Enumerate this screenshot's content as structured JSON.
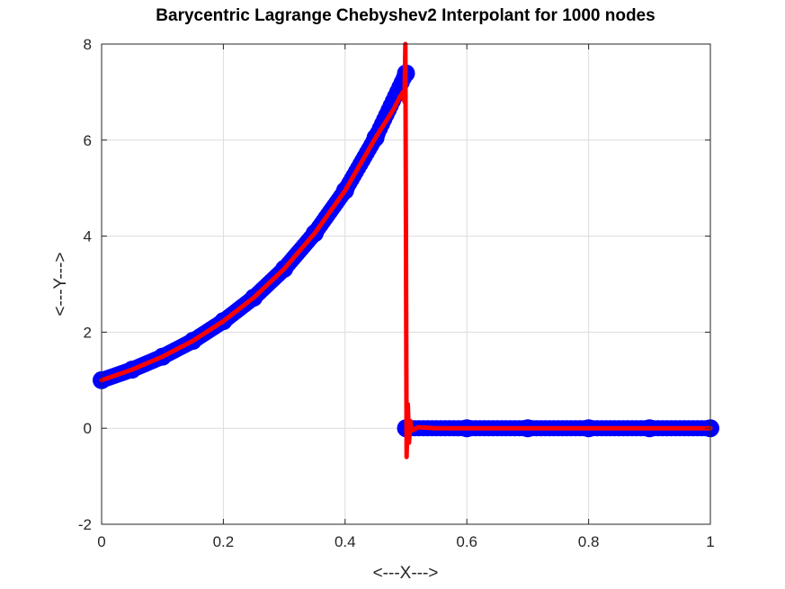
{
  "chart_data": {
    "type": "line",
    "title": "Barycentric Lagrange Chebyshev2 Interpolant for 1000 nodes",
    "xlabel": "<---X--->",
    "ylabel": "<---Y--->",
    "xlim": [
      0,
      1
    ],
    "ylim": [
      -2,
      8
    ],
    "xticks": [
      0,
      0.2,
      0.4,
      0.6,
      0.8,
      1
    ],
    "xtick_labels": [
      "0",
      "0.2",
      "0.4",
      "0.6",
      "0.8",
      "1"
    ],
    "yticks": [
      -2,
      0,
      2,
      4,
      6,
      8
    ],
    "ytick_labels": [
      "-2",
      "0",
      "2",
      "4",
      "6",
      "8"
    ],
    "grid": true,
    "series": [
      {
        "style": "markers",
        "color": "#0000ff",
        "x": [
          0,
          0.05,
          0.1,
          0.15,
          0.2,
          0.25,
          0.3,
          0.35,
          0.4,
          0.45,
          0.5,
          0.5,
          0.6,
          0.7,
          0.8,
          0.9,
          1.0
        ],
        "y": [
          1.0,
          1.22,
          1.49,
          1.82,
          2.23,
          2.72,
          3.32,
          4.06,
          4.95,
          6.05,
          7.39,
          0,
          0,
          0,
          0,
          0,
          0
        ]
      },
      {
        "style": "line",
        "color": "#ff0000",
        "x": [
          0,
          0.05,
          0.1,
          0.15,
          0.2,
          0.25,
          0.3,
          0.35,
          0.4,
          0.45,
          0.48,
          0.49,
          0.495,
          0.4975,
          0.499,
          0.5,
          0.501,
          0.503,
          0.505,
          0.507,
          0.51,
          0.52,
          0.55,
          0.6,
          0.7,
          0.8,
          0.9,
          1.0
        ],
        "y": [
          1.0,
          1.22,
          1.49,
          1.82,
          2.23,
          2.72,
          3.32,
          4.06,
          4.95,
          6.05,
          6.65,
          6.9,
          7.0,
          6.8,
          8.0,
          3.7,
          -0.6,
          0.5,
          -0.3,
          0.15,
          -0.05,
          0.02,
          0,
          0,
          0,
          0,
          0,
          0
        ]
      }
    ]
  }
}
